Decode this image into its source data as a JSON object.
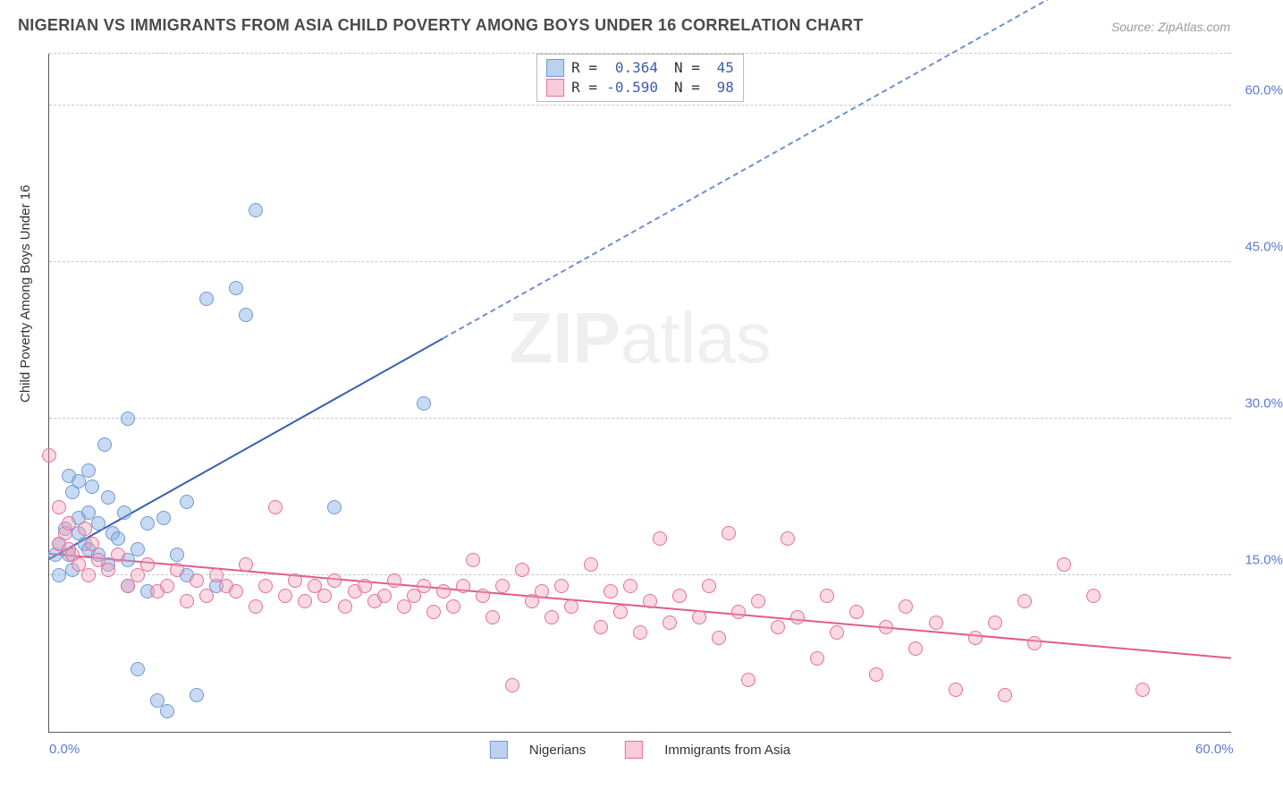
{
  "title": "NIGERIAN VS IMMIGRANTS FROM ASIA CHILD POVERTY AMONG BOYS UNDER 16 CORRELATION CHART",
  "source": "Source: ZipAtlas.com",
  "ylabel": "Child Poverty Among Boys Under 16",
  "watermark_bold": "ZIP",
  "watermark_rest": "atlas",
  "chart": {
    "type": "scatter",
    "xlim": [
      0,
      60
    ],
    "ylim": [
      0,
      65
    ],
    "xtick_labels": [
      {
        "v": 0,
        "label": "0.0%"
      },
      {
        "v": 60,
        "label": "60.0%"
      }
    ],
    "ytick_labels": [
      {
        "v": 15,
        "label": "15.0%"
      },
      {
        "v": 30,
        "label": "30.0%"
      },
      {
        "v": 45,
        "label": "45.0%"
      },
      {
        "v": 60,
        "label": "60.0%"
      }
    ],
    "gridlines_y": [
      15,
      30,
      45,
      60,
      65
    ],
    "background_color": "#ffffff",
    "grid_color": "#c8c8c8",
    "marker_size": 14,
    "series": [
      {
        "name": "Nigerians",
        "color_fill": "rgba(133,172,227,0.45)",
        "color_border": "#6f98d6",
        "css": "blue",
        "R": "0.364",
        "N": "45",
        "trend": {
          "x1": 0,
          "y1": 16.5,
          "x2": 60,
          "y2": 80,
          "solid_until_x": 20
        },
        "points": [
          [
            0.3,
            17.0
          ],
          [
            0.5,
            15.0
          ],
          [
            0.5,
            18.0
          ],
          [
            0.8,
            19.5
          ],
          [
            1.0,
            24.5
          ],
          [
            1.0,
            17.0
          ],
          [
            1.2,
            23.0
          ],
          [
            1.2,
            15.5
          ],
          [
            1.5,
            24.0
          ],
          [
            1.5,
            19.0
          ],
          [
            1.5,
            20.5
          ],
          [
            1.8,
            18.0
          ],
          [
            2.0,
            25.0
          ],
          [
            2.0,
            21.0
          ],
          [
            2.0,
            17.5
          ],
          [
            2.2,
            23.5
          ],
          [
            2.5,
            20.0
          ],
          [
            2.5,
            17.0
          ],
          [
            2.8,
            27.5
          ],
          [
            3.0,
            22.5
          ],
          [
            3.0,
            16.0
          ],
          [
            3.2,
            19.0
          ],
          [
            3.5,
            18.5
          ],
          [
            3.8,
            21.0
          ],
          [
            4.0,
            30.0
          ],
          [
            4.0,
            16.5
          ],
          [
            4.0,
            14.0
          ],
          [
            4.5,
            6.0
          ],
          [
            4.5,
            17.5
          ],
          [
            5.0,
            20.0
          ],
          [
            5.0,
            13.5
          ],
          [
            5.5,
            3.0
          ],
          [
            5.8,
            20.5
          ],
          [
            6.0,
            2.0
          ],
          [
            6.5,
            17.0
          ],
          [
            7.0,
            22.0
          ],
          [
            7.0,
            15.0
          ],
          [
            7.5,
            3.5
          ],
          [
            8.0,
            41.5
          ],
          [
            8.5,
            14.0
          ],
          [
            9.5,
            42.5
          ],
          [
            10.0,
            40.0
          ],
          [
            10.5,
            50.0
          ],
          [
            14.5,
            21.5
          ],
          [
            19.0,
            31.5
          ]
        ]
      },
      {
        "name": "Immigrants from Asia",
        "color_fill": "rgba(240,160,185,0.40)",
        "color_border": "#e76f9c",
        "css": "pink",
        "R": "-0.590",
        "N": "98",
        "trend": {
          "x1": 0,
          "y1": 17.0,
          "x2": 60,
          "y2": 7.0,
          "solid_until_x": 60
        },
        "points": [
          [
            0.0,
            26.5
          ],
          [
            0.5,
            18.0
          ],
          [
            0.5,
            21.5
          ],
          [
            0.8,
            19.0
          ],
          [
            1.0,
            17.5
          ],
          [
            1.0,
            20.0
          ],
          [
            1.2,
            17.0
          ],
          [
            1.5,
            16.0
          ],
          [
            1.8,
            19.5
          ],
          [
            2.0,
            15.0
          ],
          [
            2.2,
            18.0
          ],
          [
            2.5,
            16.5
          ],
          [
            3.0,
            15.5
          ],
          [
            3.5,
            17.0
          ],
          [
            4.0,
            14.0
          ],
          [
            4.5,
            15.0
          ],
          [
            5.0,
            16.0
          ],
          [
            5.5,
            13.5
          ],
          [
            6.0,
            14.0
          ],
          [
            6.5,
            15.5
          ],
          [
            7.0,
            12.5
          ],
          [
            7.5,
            14.5
          ],
          [
            8.0,
            13.0
          ],
          [
            8.5,
            15.0
          ],
          [
            9.0,
            14.0
          ],
          [
            9.5,
            13.5
          ],
          [
            10.0,
            16.0
          ],
          [
            10.5,
            12.0
          ],
          [
            11.0,
            14.0
          ],
          [
            11.5,
            21.5
          ],
          [
            12.0,
            13.0
          ],
          [
            12.5,
            14.5
          ],
          [
            13.0,
            12.5
          ],
          [
            13.5,
            14.0
          ],
          [
            14.0,
            13.0
          ],
          [
            14.5,
            14.5
          ],
          [
            15.0,
            12.0
          ],
          [
            15.5,
            13.5
          ],
          [
            16.0,
            14.0
          ],
          [
            16.5,
            12.5
          ],
          [
            17.0,
            13.0
          ],
          [
            17.5,
            14.5
          ],
          [
            18.0,
            12.0
          ],
          [
            18.5,
            13.0
          ],
          [
            19.0,
            14.0
          ],
          [
            19.5,
            11.5
          ],
          [
            20.0,
            13.5
          ],
          [
            20.5,
            12.0
          ],
          [
            21.0,
            14.0
          ],
          [
            21.5,
            16.5
          ],
          [
            22.0,
            13.0
          ],
          [
            22.5,
            11.0
          ],
          [
            23.0,
            14.0
          ],
          [
            23.5,
            4.5
          ],
          [
            24.0,
            15.5
          ],
          [
            24.5,
            12.5
          ],
          [
            25.0,
            13.5
          ],
          [
            25.5,
            11.0
          ],
          [
            26.0,
            14.0
          ],
          [
            26.5,
            12.0
          ],
          [
            27.5,
            16.0
          ],
          [
            28.0,
            10.0
          ],
          [
            28.5,
            13.5
          ],
          [
            29.0,
            11.5
          ],
          [
            29.5,
            14.0
          ],
          [
            30.0,
            9.5
          ],
          [
            30.5,
            12.5
          ],
          [
            31.0,
            18.5
          ],
          [
            31.5,
            10.5
          ],
          [
            32.0,
            13.0
          ],
          [
            33.0,
            11.0
          ],
          [
            33.5,
            14.0
          ],
          [
            34.0,
            9.0
          ],
          [
            34.5,
            19.0
          ],
          [
            35.0,
            11.5
          ],
          [
            35.5,
            5.0
          ],
          [
            36.0,
            12.5
          ],
          [
            37.0,
            10.0
          ],
          [
            37.5,
            18.5
          ],
          [
            38.0,
            11.0
          ],
          [
            39.0,
            7.0
          ],
          [
            39.5,
            13.0
          ],
          [
            40.0,
            9.5
          ],
          [
            41.0,
            11.5
          ],
          [
            42.0,
            5.5
          ],
          [
            42.5,
            10.0
          ],
          [
            43.5,
            12.0
          ],
          [
            44.0,
            8.0
          ],
          [
            45.0,
            10.5
          ],
          [
            46.0,
            4.0
          ],
          [
            47.0,
            9.0
          ],
          [
            48.0,
            10.5
          ],
          [
            48.5,
            3.5
          ],
          [
            49.5,
            12.5
          ],
          [
            50.0,
            8.5
          ],
          [
            51.5,
            16.0
          ],
          [
            53.0,
            13.0
          ],
          [
            55.5,
            4.0
          ]
        ]
      }
    ]
  },
  "legend_box": {
    "R_label": "R =",
    "N_label": "N ="
  },
  "bottom_legend": [
    "Nigerians",
    "Immigrants from Asia"
  ]
}
